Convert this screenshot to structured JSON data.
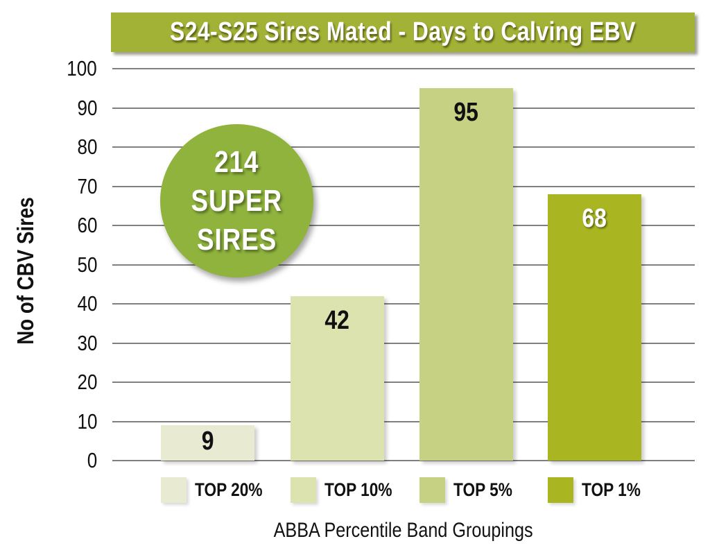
{
  "title": "S24-S25 Sires Mated - Days to Calving EBV",
  "badge": {
    "line1": "214",
    "line2": "SUPER",
    "line3": "SIRES"
  },
  "colors": {
    "banner_bg": "#a2b236",
    "badge_bg": "#8fb33d",
    "gridline": "#7f7f7f",
    "text_dark": "#111111",
    "text_light": "#ffffff"
  },
  "chart_data": {
    "type": "bar",
    "title": "S24-S25 Sires Mated - Days to Calving EBV",
    "categories": [
      "TOP 20%",
      "TOP 10%",
      "TOP 5%",
      "TOP 1%"
    ],
    "values": [
      9,
      42,
      95,
      68
    ],
    "bar_colors": [
      "#e8ead2",
      "#dde3ae",
      "#c6d183",
      "#a9b622"
    ],
    "value_label_colors": [
      "#111111",
      "#111111",
      "#111111",
      "#ffffff"
    ],
    "xlabel": "ABBA Percentile Band Groupings",
    "ylabel": "No of CBV Sires",
    "ylim": [
      0,
      100
    ],
    "yticks": [
      0,
      10,
      20,
      30,
      40,
      50,
      60,
      70,
      80,
      90,
      100
    ],
    "grid": true,
    "legend_position": "bottom",
    "annotation": "214 SUPER SIRES"
  }
}
